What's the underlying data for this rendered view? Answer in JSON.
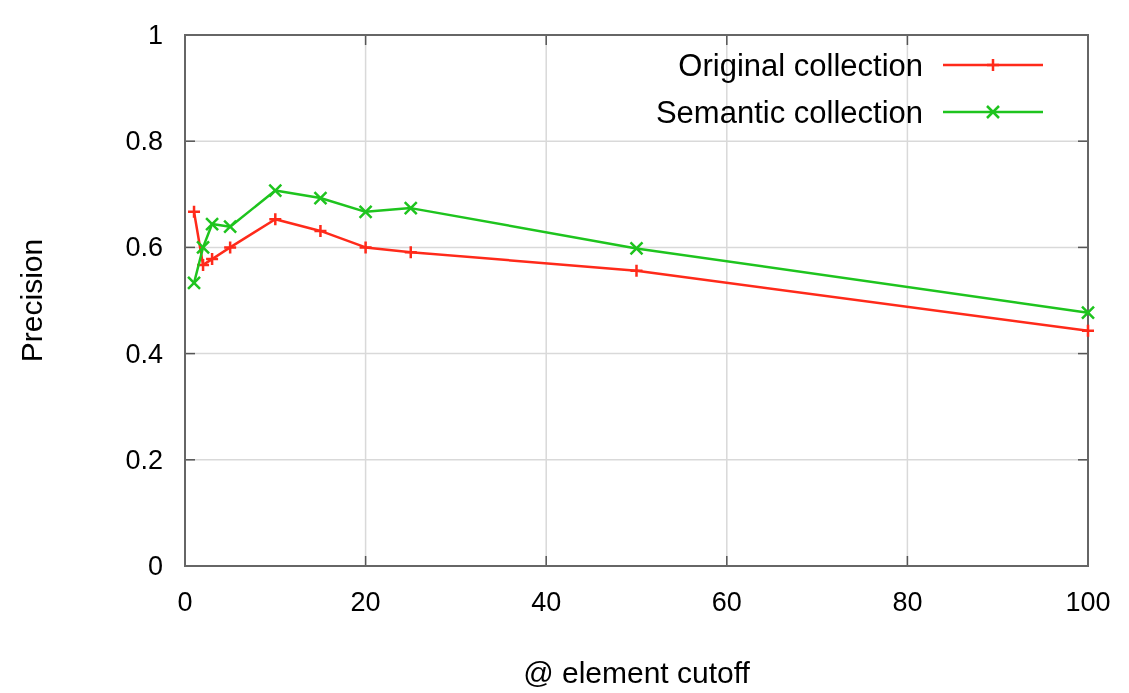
{
  "chart_data": {
    "type": "line",
    "xlabel": "@ element cutoff",
    "ylabel": "Precision",
    "xlim": [
      0,
      100
    ],
    "xticks": [
      0,
      20,
      40,
      60,
      80,
      100
    ],
    "ylim": [
      0,
      1
    ],
    "yticks": [
      0,
      0.2,
      0.4,
      0.6,
      0.8,
      1
    ],
    "grid": true,
    "legend": "top right",
    "marker": "cross",
    "line_style": "solid",
    "series": [
      {
        "name": "Original collection",
        "color": "#ff2a1a",
        "x": [
          1,
          2,
          3,
          5,
          10,
          15,
          20,
          25,
          50,
          100
        ],
        "values": [
          0.667,
          0.567,
          0.578,
          0.6,
          0.653,
          0.631,
          0.6,
          0.591,
          0.556,
          0.443
        ]
      },
      {
        "name": "Semantic collection",
        "color": "#1ec41e",
        "x": [
          1,
          2,
          3,
          5,
          10,
          15,
          20,
          25,
          50,
          100
        ],
        "values": [
          0.533,
          0.6,
          0.644,
          0.639,
          0.707,
          0.693,
          0.667,
          0.674,
          0.598,
          0.477
        ]
      }
    ]
  }
}
